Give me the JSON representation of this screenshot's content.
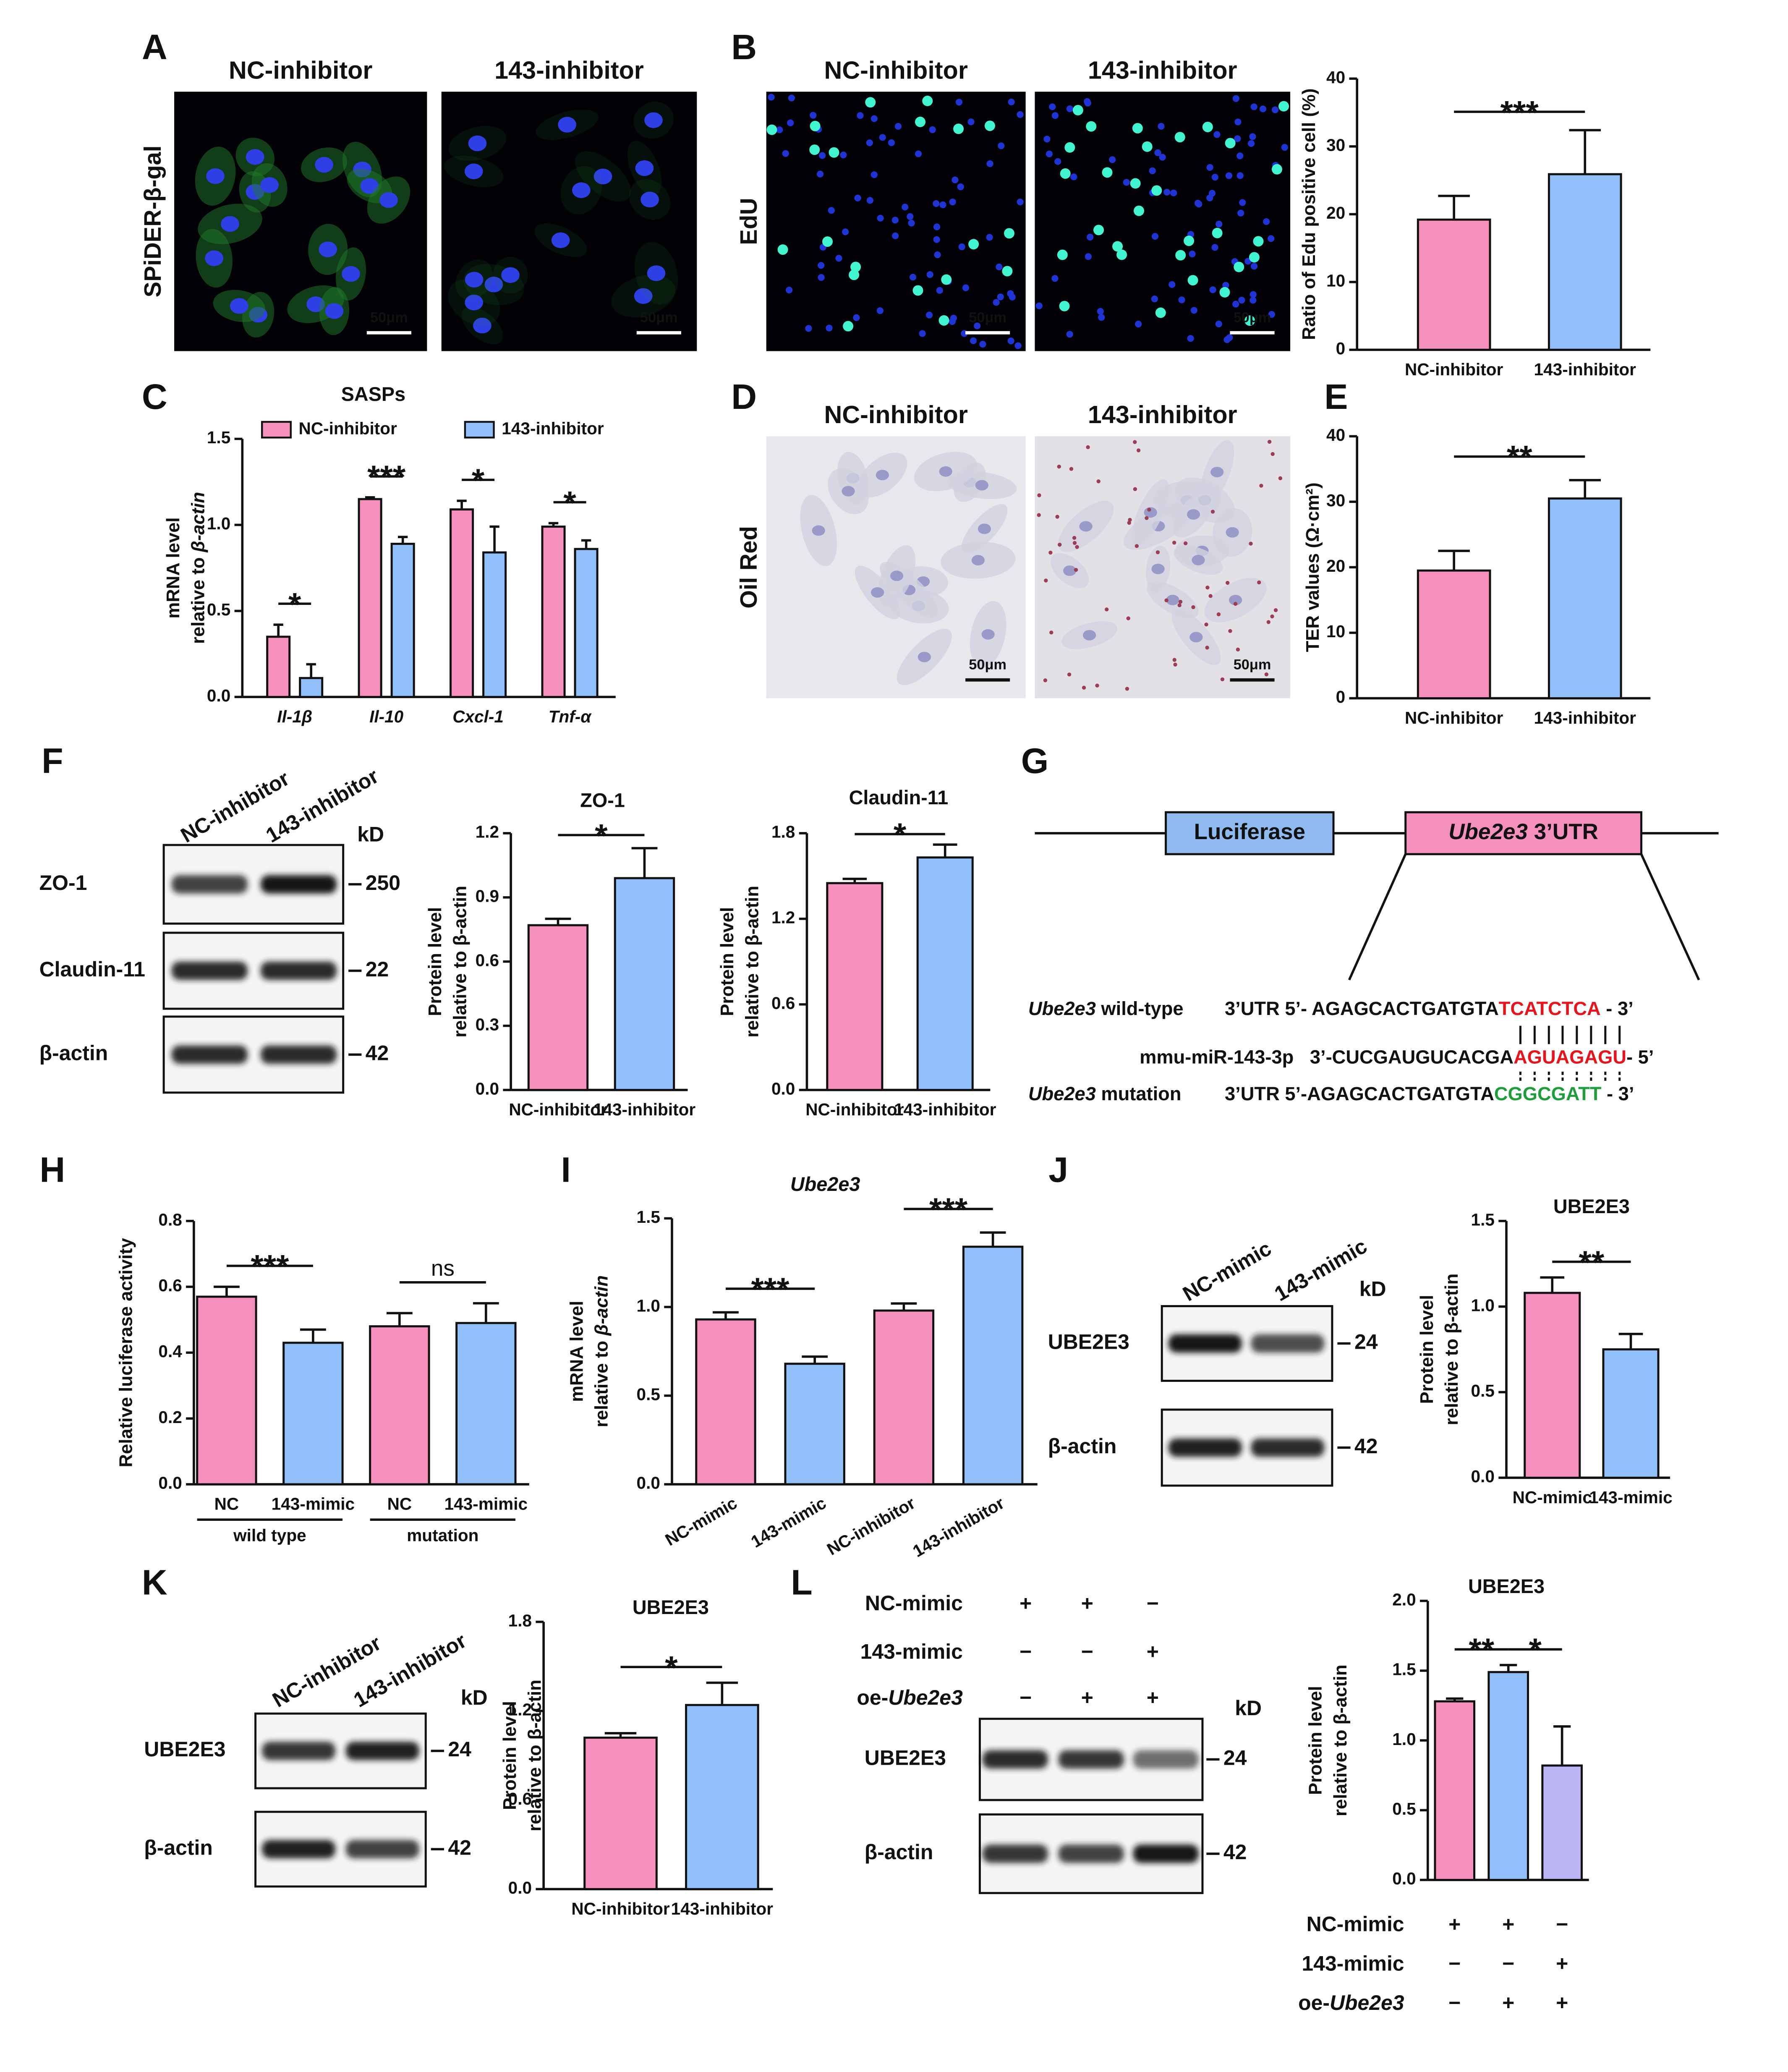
{
  "panel_labels": [
    "A",
    "B",
    "C",
    "D",
    "E",
    "F",
    "G",
    "H",
    "I",
    "J",
    "K",
    "L"
  ],
  "micrographs": [
    {
      "columns": [
        "NC-inhibitor",
        "143-inhibitor"
      ],
      "stain": "SPiDER-β-gal",
      "scale_bars": [
        "50μm",
        "50μm"
      ]
    },
    {
      "columns": [
        "NC-inhibitor",
        "143-inhibitor"
      ],
      "stain": "EdU",
      "scale_bars": [
        "50μm",
        "50μm"
      ]
    },
    {
      "columns": [
        "NC-inhibitor",
        "143-inhibitor"
      ],
      "stain": "Oil Red",
      "scale_bars": [
        "50μm",
        "50μm"
      ]
    }
  ],
  "blots": [
    {
      "lanes": [
        "NC-inhibitor",
        "143-inhibitor"
      ],
      "unit": "kD",
      "rows": [
        {
          "protein": "ZO-1",
          "marker": "250"
        },
        {
          "protein": "Claudin-11",
          "marker": "22"
        },
        {
          "protein": "β-actin",
          "marker": "42"
        }
      ]
    },
    {
      "lanes": [
        "NC-mimic",
        "143-mimic"
      ],
      "unit": "kD",
      "rows": [
        {
          "protein": "UBE2E3",
          "marker": "24"
        },
        {
          "protein": "β-actin",
          "marker": "42"
        }
      ]
    },
    {
      "lanes": [
        "NC-inhibitor",
        "143-inhibitor"
      ],
      "unit": "kD",
      "rows": [
        {
          "protein": "UBE2E3",
          "marker": "24"
        },
        {
          "protein": "β-actin",
          "marker": "42"
        }
      ]
    },
    {
      "conditions": [
        {
          "label": [
            {
              "text": "NC-mimic"
            }
          ],
          "marks": [
            "+",
            "+",
            "−"
          ]
        },
        {
          "label": [
            {
              "text": "143-mimic"
            }
          ],
          "marks": [
            "−",
            "−",
            "+"
          ]
        },
        {
          "label": [
            {
              "text": "oe-"
            },
            {
              "text": "Ube2e3",
              "italic": true
            }
          ],
          "marks": [
            "−",
            "+",
            "+"
          ]
        }
      ],
      "unit": "kD",
      "rows": [
        {
          "protein": "UBE2E3",
          "marker": "24"
        },
        {
          "protein": "β-actin",
          "marker": "42"
        }
      ]
    }
  ],
  "diagram": {
    "boxes": [
      [
        {
          "text": "Luciferase"
        }
      ],
      [
        {
          "text": "Ube2e3",
          "italic": true
        },
        {
          "text": " 3’UTR"
        }
      ]
    ],
    "sequences": [
      {
        "name": [
          {
            "text": "Ube2e3",
            "italic": true
          },
          {
            "text": " wild-type"
          }
        ],
        "sequence": [
          {
            "text": "3’UTR 5’- AGAGCACTGATGTA"
          },
          {
            "text": "TCATCTCA",
            "color": "#e8141c"
          },
          {
            "text": " - 3’"
          }
        ]
      },
      {
        "name": [
          {
            "text": "mmu-miR-143-3p"
          }
        ],
        "sequence": [
          {
            "text": "3’-CUCGAUGUCACGA"
          },
          {
            "text": "AGUAGAGU",
            "color": "#e8141c"
          },
          {
            "text": "- 5’"
          }
        ]
      },
      {
        "name": [
          {
            "text": "Ube2e3",
            "italic": true
          },
          {
            "text": " mutation"
          }
        ],
        "sequence": [
          {
            "text": "3’UTR 5’-AGAGCACTGATGTA"
          },
          {
            "text": "CGGCGATT",
            "color": "#1e9e3a"
          },
          {
            "text": " - 3’"
          }
        ]
      }
    ]
  },
  "chart_data": [
    {
      "type": "bar",
      "ylabel": [
        [
          {
            "text": "Ratio of Edu positive cell (%)"
          }
        ]
      ],
      "categories": [
        "NC-inhibitor",
        "143-inhibitor"
      ],
      "values": [
        19.2,
        25.9
      ],
      "errors": [
        3.5,
        6.5
      ],
      "colors": [
        "#f590bd",
        "#90bff9"
      ],
      "ylim": [
        0,
        40
      ],
      "yticks": [
        0,
        10,
        20,
        30,
        40
      ],
      "annotations": [
        "***"
      ]
    },
    {
      "type": "bar",
      "title": "SASPs",
      "ylabel": [
        [
          {
            "text": "mRNA level"
          }
        ],
        [
          {
            "text": "relative to "
          },
          {
            "text": "β-actin",
            "italic": true
          }
        ]
      ],
      "categories": [
        "Il-1β",
        "Il-10",
        "Cxcl-1",
        "Tnf-α"
      ],
      "italic_categories": true,
      "series": [
        {
          "name": "NC-inhibitor",
          "color": "#f590bd",
          "values": [
            0.35,
            1.15,
            1.09,
            0.99
          ],
          "errors": [
            0.07,
            0.01,
            0.05,
            0.02
          ]
        },
        {
          "name": "143-inhibitor",
          "color": "#90bff9",
          "values": [
            0.11,
            0.89,
            0.84,
            0.86
          ],
          "errors": [
            0.08,
            0.04,
            0.15,
            0.05
          ]
        }
      ],
      "ylim": [
        0,
        1.5
      ],
      "yticks": [
        {
          "value": 0,
          "label": "0.0"
        },
        0.5,
        {
          "value": 1,
          "label": "1.0"
        },
        1.5
      ],
      "annotations": [
        "*",
        "***",
        "*",
        "*"
      ]
    },
    {
      "type": "bar",
      "ylabel": [
        [
          {
            "text": "TER values (Ω·cm²)"
          }
        ]
      ],
      "categories": [
        "NC-inhibitor",
        "143-inhibitor"
      ],
      "values": [
        19.5,
        30.5
      ],
      "errors": [
        3.0,
        2.8
      ],
      "colors": [
        "#f590bd",
        "#90bff9"
      ],
      "ylim": [
        0,
        40
      ],
      "yticks": [
        0,
        10,
        20,
        30,
        40
      ],
      "annotations": [
        "**"
      ]
    },
    {
      "type": "bar",
      "title": "ZO-1",
      "ylabel": [
        [
          {
            "text": "Protein level"
          }
        ],
        [
          {
            "text": "relative to β-actin"
          }
        ]
      ],
      "categories": [
        "NC-inhibitor",
        "143-inhibitor"
      ],
      "values": [
        0.77,
        0.99
      ],
      "errors": [
        0.03,
        0.14
      ],
      "colors": [
        "#f590bd",
        "#90bff9"
      ],
      "ylim": [
        0,
        1.2
      ],
      "yticks": [
        {
          "value": 0,
          "label": "0.0"
        },
        0.3,
        0.6,
        0.9,
        1.2
      ],
      "annotations": [
        "*"
      ]
    },
    {
      "type": "bar",
      "title": "Claudin-11",
      "ylabel": [
        [
          {
            "text": "Protein level"
          }
        ],
        [
          {
            "text": "relative to β-actin"
          }
        ]
      ],
      "categories": [
        "NC-inhibitor",
        "143-inhibitor"
      ],
      "values": [
        1.45,
        1.63
      ],
      "errors": [
        0.03,
        0.09
      ],
      "colors": [
        "#f590bd",
        "#90bff9"
      ],
      "ylim": [
        0,
        1.8
      ],
      "yticks": [
        {
          "value": 0,
          "label": "0.0"
        },
        0.6,
        1.2,
        1.8
      ],
      "annotations": [
        "*"
      ]
    },
    {
      "type": "bar",
      "ylabel": [
        [
          {
            "text": "Relative luciferase activity"
          }
        ]
      ],
      "categories": [
        "NC",
        "143-mimic",
        "NC",
        "143-mimic"
      ],
      "groups": [
        "wild type",
        "mutation"
      ],
      "values": [
        0.57,
        0.43,
        0.48,
        0.49
      ],
      "errors": [
        0.03,
        0.04,
        0.04,
        0.06
      ],
      "colors": [
        "#f590bd",
        "#90bff9",
        "#f590bd",
        "#90bff9"
      ],
      "ylim": [
        0,
        0.8
      ],
      "yticks": [
        {
          "value": 0,
          "label": "0.0"
        },
        0.2,
        0.4,
        0.6,
        0.8
      ],
      "annotations": [
        "***",
        "ns"
      ]
    },
    {
      "type": "bar",
      "title": "Ube2e3",
      "title_italic": true,
      "ylabel": [
        [
          {
            "text": "mRNA level"
          }
        ],
        [
          {
            "text": "relative to "
          },
          {
            "text": "β-actin",
            "italic": true
          }
        ]
      ],
      "categories": [
        "NC-mimic",
        "143-mimic",
        "NC-inhibitor",
        "143-inhibitor"
      ],
      "values": [
        0.93,
        0.68,
        0.98,
        1.34
      ],
      "errors": [
        0.04,
        0.04,
        0.04,
        0.08
      ],
      "colors": [
        "#f590bd",
        "#90bff9",
        "#f590bd",
        "#90bff9"
      ],
      "ylim": [
        0,
        1.5
      ],
      "yticks": [
        {
          "value": 0,
          "label": "0.0"
        },
        0.5,
        {
          "value": 1,
          "label": "1.0"
        },
        1.5
      ],
      "annotations": [
        "***",
        "***"
      ]
    },
    {
      "type": "bar",
      "title": "UBE2E3",
      "ylabel": [
        [
          {
            "text": "Protein level"
          }
        ],
        [
          {
            "text": "relative to β-actin"
          }
        ]
      ],
      "categories": [
        "NC-mimic",
        "143-mimic"
      ],
      "values": [
        1.08,
        0.75
      ],
      "errors": [
        0.09,
        0.09
      ],
      "colors": [
        "#f590bd",
        "#90bff9"
      ],
      "ylim": [
        0,
        1.5
      ],
      "yticks": [
        {
          "value": 0,
          "label": "0.0"
        },
        0.5,
        {
          "value": 1,
          "label": "1.0"
        },
        1.5
      ],
      "annotations": [
        "**"
      ]
    },
    {
      "type": "bar",
      "title": "UBE2E3",
      "ylabel": [
        [
          {
            "text": "Protein level"
          }
        ],
        [
          {
            "text": "relative to β-actin"
          }
        ]
      ],
      "categories": [
        "NC-inhibitor",
        "143-inhibitor"
      ],
      "values": [
        1.02,
        1.24
      ],
      "errors": [
        0.03,
        0.15
      ],
      "colors": [
        "#f590bd",
        "#90bff9"
      ],
      "ylim": [
        0,
        1.8
      ],
      "yticks": [
        {
          "value": 0,
          "label": "0.0"
        },
        0.6,
        1.2,
        1.8
      ],
      "annotations": [
        "*"
      ]
    },
    {
      "type": "bar",
      "title": "UBE2E3",
      "ylabel": [
        [
          {
            "text": "Protein level"
          }
        ],
        [
          {
            "text": "relative to β-actin"
          }
        ]
      ],
      "categories": [
        null,
        null,
        null
      ],
      "values": [
        1.28,
        1.49,
        0.82
      ],
      "errors": [
        0.02,
        0.05,
        0.28
      ],
      "colors": [
        "#f590bd",
        "#90bff9",
        "#bbb5f3"
      ],
      "ylim": [
        0,
        2
      ],
      "yticks": [
        {
          "value": 0,
          "label": "0.0"
        },
        0.5,
        {
          "value": 1,
          "label": "1.0"
        },
        1.5,
        {
          "value": 2,
          "label": "2.0"
        }
      ],
      "annotations": [
        "**",
        "*"
      ],
      "conditions": [
        {
          "label": [
            {
              "text": "NC-mimic"
            }
          ],
          "marks": [
            "+",
            "+",
            "−"
          ]
        },
        {
          "label": [
            {
              "text": "143-mimic"
            }
          ],
          "marks": [
            "−",
            "−",
            "+"
          ]
        },
        {
          "label": [
            {
              "text": "oe-"
            },
            {
              "text": "Ube2e3",
              "italic": true
            }
          ],
          "marks": [
            "−",
            "+",
            "+"
          ]
        }
      ]
    }
  ]
}
